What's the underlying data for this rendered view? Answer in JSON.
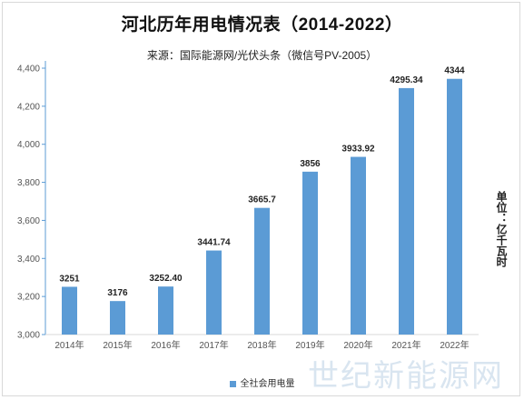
{
  "title": "河北历年用电情况表（2014-2022）",
  "subtitle": "来源：国际能源网/光伏头条（微信号PV-2005）",
  "unit_label": "单位：亿千瓦时",
  "watermark": "世纪新能源网",
  "colors": {
    "bar": "#5b9bd5",
    "axis": "#5b9bd5",
    "grid": "#d9d9d9"
  },
  "chart_data": {
    "type": "bar",
    "categories": [
      "2014年",
      "2015年",
      "2016年",
      "2017年",
      "2018年",
      "2019年",
      "2020年",
      "2021年",
      "2022年"
    ],
    "series": [
      {
        "name": "全社会用电量",
        "values": [
          3251,
          3176,
          3252.4,
          3441.74,
          3665.7,
          3856,
          3933.92,
          4295.34,
          4344
        ]
      }
    ],
    "data_labels": [
      "3251",
      "3176",
      "3252.40",
      "3441.74",
      "3665.7",
      "3856",
      "3933.92",
      "4295.34",
      "4344"
    ],
    "ylim": [
      3000,
      4400
    ],
    "yticks": [
      3000,
      3200,
      3400,
      3600,
      3800,
      4000,
      4200,
      4400
    ],
    "ytick_labels": [
      "3,000",
      "3,200",
      "3,400",
      "3,600",
      "3,800",
      "4,000",
      "4,200",
      "4,400"
    ],
    "grid": false,
    "legend_position": "bottom"
  }
}
